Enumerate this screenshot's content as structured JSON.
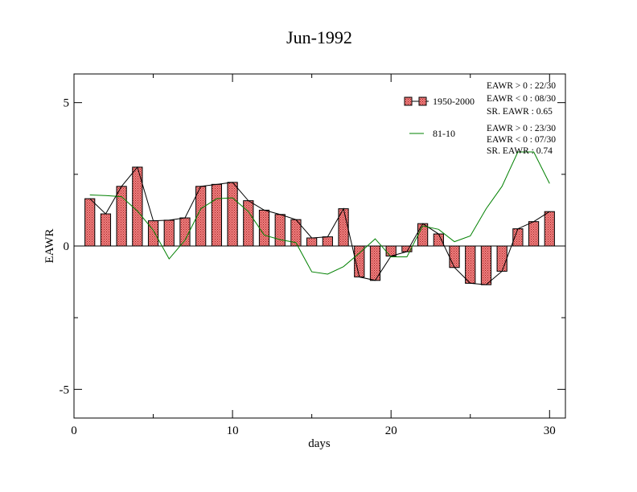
{
  "chart_data": {
    "type": "bar",
    "title": "Jun-1992",
    "xlabel": "days",
    "ylabel": "EAWR",
    "xlim": [
      0,
      31
    ],
    "ylim": [
      -6,
      6
    ],
    "xticks": [
      0,
      10,
      20,
      30
    ],
    "yticks": [
      -5,
      0,
      5
    ],
    "x": [
      1,
      2,
      3,
      4,
      5,
      6,
      7,
      8,
      9,
      10,
      11,
      12,
      13,
      14,
      15,
      16,
      17,
      18,
      19,
      20,
      21,
      22,
      23,
      24,
      25,
      26,
      27,
      28,
      29,
      30
    ],
    "series": [
      {
        "name": "1950-2000",
        "kind": "bar+line",
        "values": [
          1.65,
          1.12,
          2.08,
          2.75,
          0.88,
          0.9,
          0.98,
          2.08,
          2.15,
          2.22,
          1.58,
          1.25,
          1.1,
          0.92,
          0.28,
          0.32,
          1.3,
          -1.08,
          -1.2,
          -0.35,
          -0.2,
          0.78,
          0.42,
          -0.75,
          -1.3,
          -1.35,
          -0.88,
          0.6,
          0.85,
          1.2
        ]
      },
      {
        "name": "81-10",
        "kind": "line",
        "values": [
          1.78,
          1.76,
          1.72,
          1.22,
          0.55,
          -0.45,
          0.2,
          1.3,
          1.65,
          1.68,
          1.2,
          0.38,
          0.22,
          0.12,
          -0.9,
          -0.98,
          -0.72,
          -0.25,
          0.25,
          -0.38,
          -0.38,
          0.7,
          0.58,
          0.15,
          0.35,
          1.3,
          2.08,
          3.28,
          3.28,
          2.18
        ]
      }
    ],
    "legend": {
      "placement": "top-right",
      "entries": [
        {
          "label": "1950-2000",
          "stats": [
            "EAWR > 0 : 22/30",
            "EAWR < 0 : 08/30",
            "SR. EAWR :  0.65"
          ]
        },
        {
          "label": "81-10",
          "stats": [
            "EAWR > 0 : 23/30",
            "EAWR < 0 : 07/30",
            "SR. EAWR :  0.74"
          ]
        }
      ]
    },
    "colors": {
      "bar_fill": "#f08080",
      "bar_hatch": "#b03030",
      "bar_line": "#000000",
      "climatology_line": "#008000"
    },
    "grid": false
  }
}
